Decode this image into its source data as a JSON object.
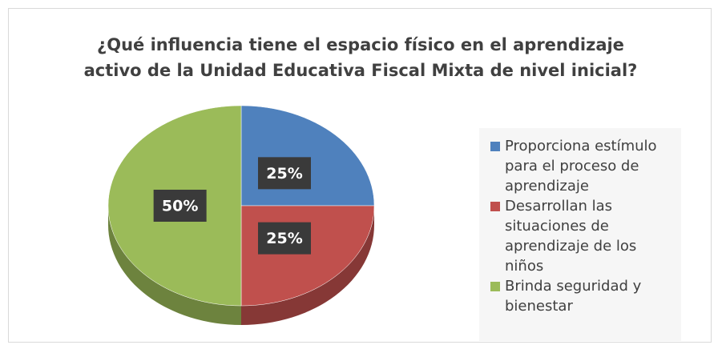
{
  "chart_data": {
    "type": "pie",
    "title": "¿Qué influencia tiene el espacio físico en el aprendizaje activo de la Unidad Educativa Fiscal Mixta de nivel inicial?",
    "categories": [
      "Proporciona estímulo para el proceso de aprendizaje",
      "Desarrollan las situaciones de aprendizaje de los niños",
      "Brinda seguridad y bienestar"
    ],
    "values": [
      25,
      25,
      50
    ],
    "value_labels": [
      "25%",
      "25%",
      "50%"
    ],
    "colors": [
      "#4f81bd",
      "#c0504d",
      "#9bbb59"
    ],
    "legend": "right"
  }
}
